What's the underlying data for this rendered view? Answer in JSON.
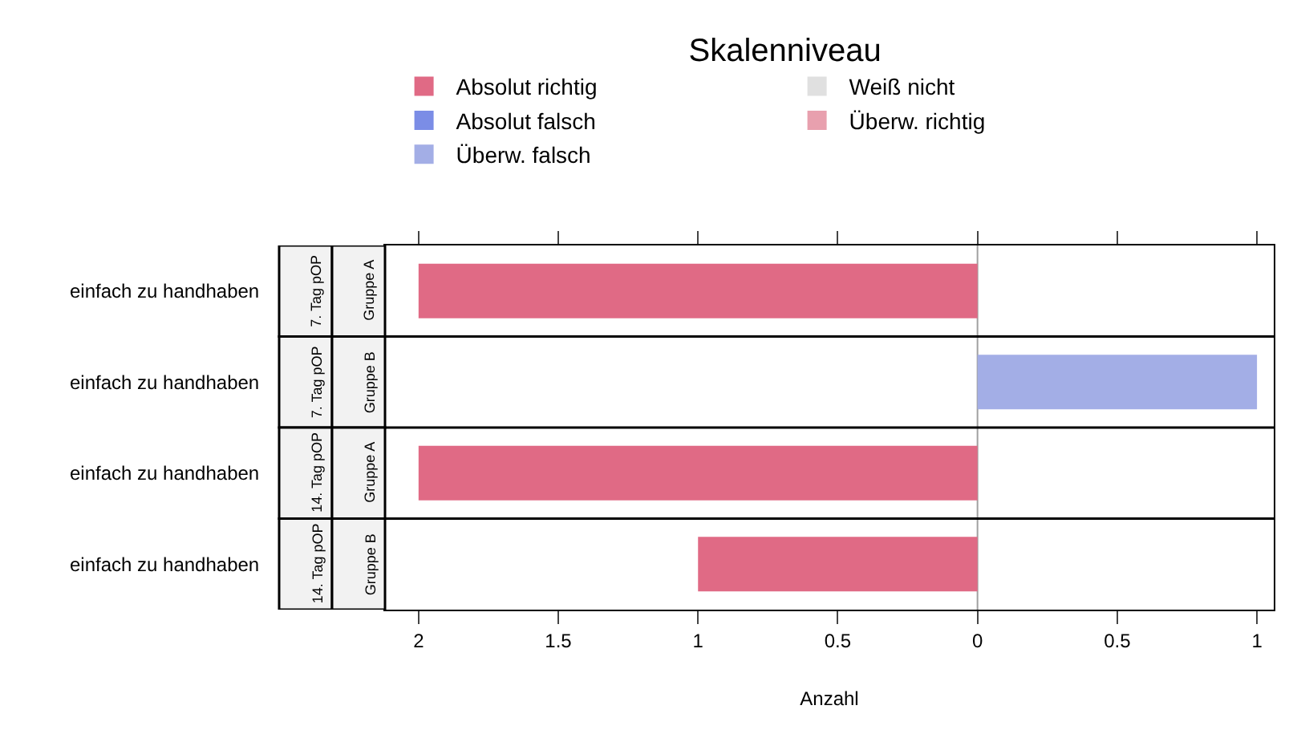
{
  "chart_data": {
    "type": "bar",
    "orientation": "horizontal",
    "stacked": true,
    "xlabel": "Anzahl",
    "legend_title": "Skalenniveau",
    "legend": "top",
    "categories": [
      "einfach zu handhaben",
      "einfach zu handhaben",
      "einfach zu handhaben",
      "einfach zu handhaben"
    ],
    "series": [
      {
        "name": "Absolut richtig",
        "color": "#e06a85",
        "values": [
          -2,
          null,
          -2,
          -1
        ]
      },
      {
        "name": "Überw. richtig",
        "color": "#e8a0ae",
        "values": [
          null,
          null,
          null,
          null
        ]
      },
      {
        "name": "Weiß nicht",
        "color": "#e0e0e0",
        "values": [
          null,
          null,
          null,
          null
        ]
      },
      {
        "name": "Überw. falsch",
        "color": "#a3aee6",
        "values": [
          null,
          1,
          null,
          null
        ]
      },
      {
        "name": "Absolut falsch",
        "color": "#7b8de6",
        "values": [
          null,
          null,
          null,
          null
        ]
      }
    ],
    "xlim": [
      -2.12,
      1.06
    ],
    "xticks": [
      {
        "value": -2,
        "label": "2"
      },
      {
        "value": -1.5,
        "label": "1.5"
      },
      {
        "value": -1,
        "label": "1"
      },
      {
        "value": -0.5,
        "label": "0.5"
      },
      0,
      0.5,
      1
    ],
    "ref_lines": [
      {
        "axis": "x",
        "value": 0,
        "color": "#a0a0a0"
      }
    ],
    "annotations": [
      "7. Tag pOP",
      "Gruppe A",
      "7. Tag pOP",
      "Gruppe B",
      "14. Tag pOP",
      "Gruppe A",
      "14. Tag pOP",
      "Gruppe B"
    ],
    "grid": false
  }
}
